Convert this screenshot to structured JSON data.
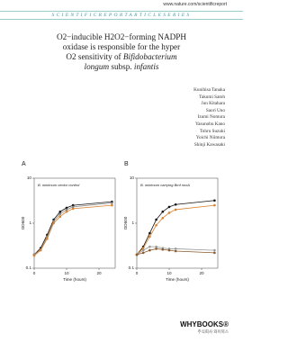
{
  "header": {
    "url": "www.nature.com/scientificreport",
    "series": "SCIENTIFICREPORTARTICLESERIES"
  },
  "title": {
    "line1": "O2−inducible H2O2−forming NADPH",
    "line2": "oxidase is responsible for the hyper",
    "line3a": "O2 sensitivity of",
    "line3b": "Bifidobacterium",
    "line4a": "longum",
    "line4b": "subsp.",
    "line4c": "infantis"
  },
  "authors": [
    "Kunihisa Tanaka",
    "Takumi Satoh",
    "Jun Kitahara",
    "Saori Uno",
    "Izumi Nomura",
    "Yasunobu Kano",
    "Tohru Suzuki",
    "Yoichi Niimura",
    "Shinji Kawasaki"
  ],
  "chart_data": [
    {
      "type": "line",
      "panel": "A",
      "subtitle": "B. minimum vector control",
      "ylabel": "OD600",
      "xlabel": "Time (hours)",
      "log_y": true,
      "xlim": [
        0,
        25
      ],
      "xticks": [
        0,
        10,
        20
      ],
      "ylim": [
        0.1,
        10
      ],
      "yticks": [
        10,
        1,
        0.1
      ],
      "x": [
        0,
        2,
        4,
        6,
        8,
        10,
        12,
        24
      ],
      "series": [
        {
          "color": "#111111",
          "values": [
            0.2,
            0.28,
            0.55,
            1.2,
            1.8,
            2.2,
            2.5,
            3.0
          ]
        },
        {
          "color": "#888888",
          "values": [
            0.2,
            0.26,
            0.5,
            1.1,
            1.6,
            2.0,
            2.3,
            2.8
          ]
        },
        {
          "color": "#d9822b",
          "values": [
            0.19,
            0.25,
            0.45,
            1.0,
            1.4,
            1.8,
            2.1,
            2.5
          ]
        }
      ]
    },
    {
      "type": "line",
      "panel": "B",
      "subtitle": "B. minimum carrying Bmf noxA",
      "ylabel": "OD600",
      "xlabel": "Time (hours)",
      "log_y": true,
      "xlim": [
        0,
        25
      ],
      "xticks": [
        0,
        10,
        20
      ],
      "ylim": [
        0.1,
        10
      ],
      "yticks": [
        10,
        1,
        0.1
      ],
      "x": [
        0,
        2,
        4,
        6,
        8,
        10,
        12,
        24
      ],
      "series": [
        {
          "color": "#111111",
          "values": [
            0.2,
            0.3,
            0.6,
            1.2,
            1.8,
            2.3,
            2.6,
            3.2
          ]
        },
        {
          "color": "#d9822b",
          "values": [
            0.2,
            0.28,
            0.5,
            0.9,
            1.3,
            1.7,
            2.0,
            2.5
          ]
        },
        {
          "color": "#999999",
          "values": [
            0.2,
            0.25,
            0.3,
            0.3,
            0.28,
            0.27,
            0.27,
            0.25
          ]
        },
        {
          "color": "#8a5a2b",
          "values": [
            0.2,
            0.22,
            0.25,
            0.27,
            0.26,
            0.25,
            0.24,
            0.22
          ]
        }
      ]
    }
  ],
  "publisher": {
    "name": "WHYBOOKS®",
    "sub": "주식회사 와이북스"
  }
}
